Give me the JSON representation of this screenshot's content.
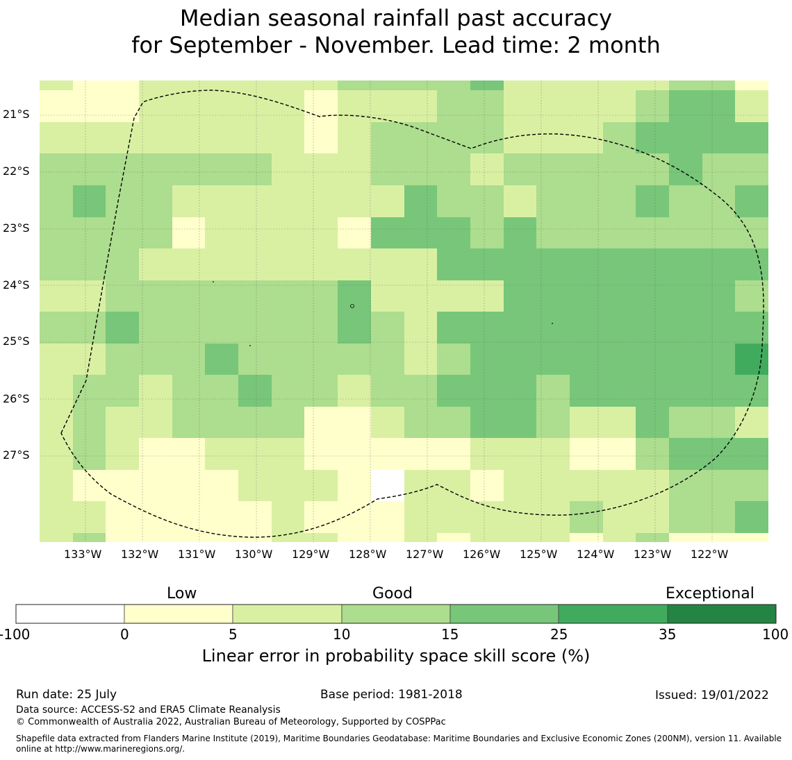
{
  "title": {
    "line1": "Median seasonal rainfall past accuracy",
    "line2": "for September - November. Lead time: 2 month"
  },
  "map": {
    "lat_labels": [
      "21°S",
      "22°S",
      "23°S",
      "24°S",
      "25°S",
      "26°S",
      "27°S"
    ],
    "lon_labels": [
      "133°W",
      "132°W",
      "131°W",
      "130°W",
      "129°W",
      "128°W",
      "127°W",
      "126°W",
      "125°W",
      "124°W",
      "123°W",
      "122°W"
    ],
    "grid": [
      [
        2,
        1,
        1,
        2,
        2,
        2,
        2,
        2,
        2,
        3,
        3,
        3,
        3,
        4,
        2,
        2,
        2,
        2,
        2,
        3,
        3,
        1
      ],
      [
        1,
        1,
        1,
        2,
        2,
        2,
        2,
        2,
        1,
        2,
        2,
        2,
        3,
        3,
        2,
        2,
        2,
        2,
        3,
        4,
        4,
        2
      ],
      [
        2,
        2,
        2,
        2,
        2,
        2,
        2,
        2,
        1,
        2,
        3,
        3,
        3,
        3,
        2,
        2,
        2,
        3,
        4,
        4,
        4,
        4
      ],
      [
        3,
        3,
        3,
        3,
        3,
        3,
        3,
        2,
        2,
        2,
        3,
        3,
        3,
        2,
        3,
        3,
        3,
        3,
        3,
        4,
        3,
        3
      ],
      [
        3,
        4,
        3,
        3,
        2,
        2,
        2,
        2,
        2,
        2,
        2,
        4,
        3,
        3,
        2,
        3,
        3,
        3,
        4,
        3,
        3,
        4
      ],
      [
        3,
        3,
        3,
        3,
        1,
        2,
        2,
        2,
        2,
        1,
        4,
        4,
        4,
        3,
        4,
        3,
        3,
        3,
        3,
        3,
        3,
        3
      ],
      [
        3,
        3,
        3,
        2,
        2,
        2,
        2,
        2,
        2,
        2,
        2,
        2,
        4,
        4,
        4,
        4,
        4,
        4,
        4,
        4,
        4,
        4
      ],
      [
        2,
        2,
        3,
        3,
        3,
        3,
        3,
        3,
        3,
        4,
        2,
        2,
        2,
        2,
        4,
        4,
        4,
        4,
        4,
        4,
        4,
        3
      ],
      [
        3,
        3,
        4,
        3,
        3,
        3,
        3,
        3,
        3,
        4,
        3,
        2,
        4,
        4,
        4,
        4,
        4,
        4,
        4,
        4,
        4,
        4
      ],
      [
        2,
        2,
        3,
        3,
        3,
        4,
        3,
        3,
        3,
        3,
        3,
        2,
        3,
        4,
        4,
        4,
        4,
        4,
        4,
        4,
        4,
        5
      ],
      [
        2,
        3,
        3,
        2,
        3,
        3,
        4,
        3,
        3,
        2,
        3,
        3,
        4,
        4,
        4,
        3,
        4,
        4,
        4,
        4,
        4,
        4
      ],
      [
        2,
        3,
        2,
        2,
        3,
        3,
        3,
        3,
        1,
        1,
        2,
        3,
        3,
        4,
        4,
        3,
        2,
        2,
        4,
        3,
        3,
        2
      ],
      [
        2,
        3,
        2,
        1,
        1,
        2,
        2,
        2,
        1,
        1,
        1,
        1,
        1,
        2,
        2,
        2,
        1,
        1,
        3,
        4,
        4,
        4
      ],
      [
        2,
        1,
        1,
        1,
        1,
        1,
        2,
        2,
        2,
        1,
        0,
        2,
        2,
        1,
        2,
        2,
        2,
        2,
        2,
        3,
        3,
        3
      ],
      [
        2,
        2,
        1,
        1,
        1,
        1,
        1,
        2,
        1,
        1,
        1,
        2,
        2,
        2,
        2,
        2,
        3,
        2,
        2,
        3,
        3,
        4
      ],
      [
        2,
        3,
        1,
        1,
        1,
        1,
        1,
        2,
        2,
        1,
        1,
        2,
        1,
        2,
        2,
        2,
        1,
        2,
        3,
        1,
        1,
        1
      ]
    ]
  },
  "colorbar": {
    "words": {
      "low": "Low",
      "good": "Good",
      "exceptional": "Exceptional"
    },
    "colors": [
      "#ffffff",
      "#ffffcc",
      "#d9f0a3",
      "#addd8e",
      "#78c679",
      "#41ab5d",
      "#238443"
    ],
    "ticks": [
      "-100",
      "0",
      "5",
      "10",
      "15",
      "25",
      "35",
      "100"
    ],
    "xlabel": "Linear error in probability space skill score (%)"
  },
  "footer": {
    "run_date": "Run date: 25 July",
    "base_period": "Base period: 1981-2018",
    "issued": "Issued: 19/01/2022",
    "data_source": "Data source: ACCESS-S2 and ERA5 Climate Reanalysis",
    "copyright": "© Commonwealth of Australia 2022, Australian Bureau of Meteorology, Supported by COSPPac",
    "shapefile": "Shapefile data extracted from Flanders Marine Institute (2019), Maritime Boundaries Geodatabase: Maritime Boundaries and Exclusive Economic Zones (200NM), version 11. Available online at http://www.marineregions.org/."
  }
}
